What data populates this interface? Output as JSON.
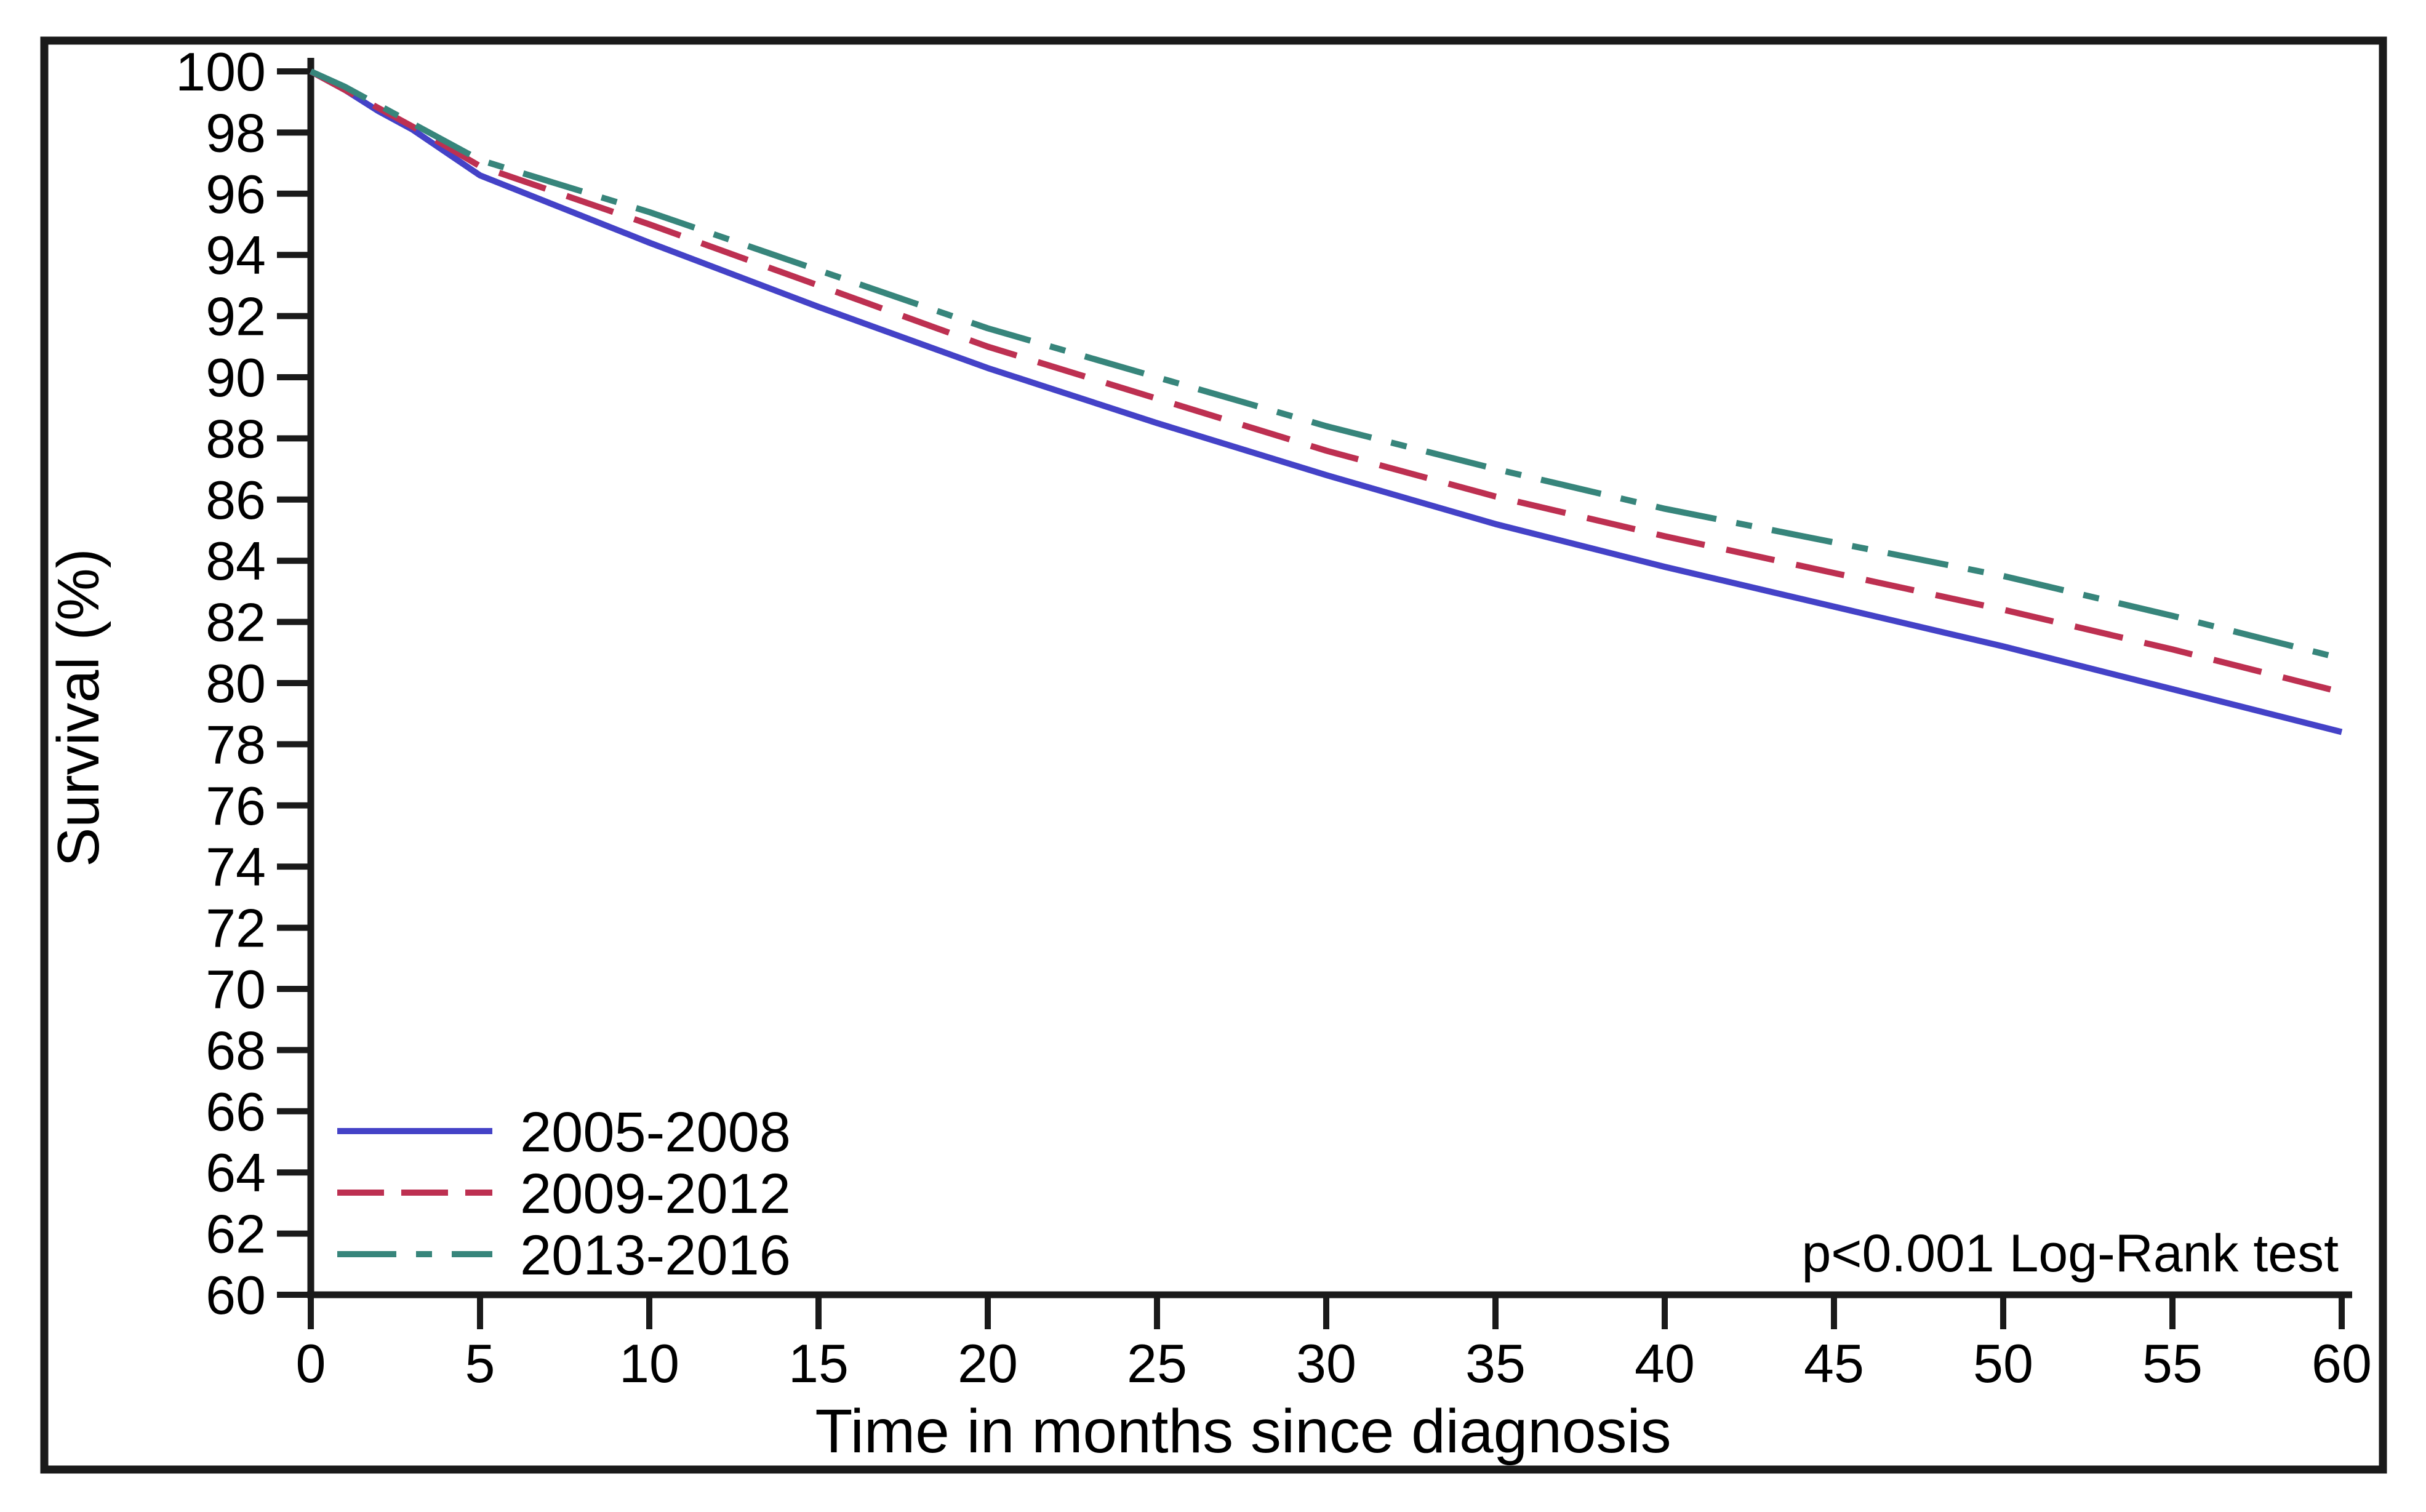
{
  "chart_data": {
    "type": "line",
    "title": "",
    "xlabel": "Time in months since diagnosis",
    "ylabel": "Survival (%)",
    "annotation": "p<0.001 Log-Rank test",
    "xlim": [
      0,
      60
    ],
    "ylim": [
      60,
      100
    ],
    "x_ticks": [
      0,
      5,
      10,
      15,
      20,
      25,
      30,
      35,
      40,
      45,
      50,
      55,
      60
    ],
    "y_ticks": [
      60,
      62,
      64,
      66,
      68,
      70,
      72,
      74,
      76,
      78,
      80,
      82,
      84,
      86,
      88,
      90,
      92,
      94,
      96,
      98,
      100
    ],
    "grid": "off",
    "legend_position": "bottom-left",
    "x": [
      0,
      1,
      2,
      3,
      5,
      10,
      15,
      20,
      25,
      30,
      35,
      40,
      45,
      50,
      55,
      60
    ],
    "series": [
      {
        "name": "2005-2008",
        "color": "#4442c7",
        "line_style": "solid",
        "values": [
          100,
          99.4,
          98.7,
          98.1,
          96.6,
          94.4,
          92.3,
          90.3,
          88.5,
          86.8,
          85.2,
          83.8,
          82.5,
          81.2,
          79.8,
          78.4
        ]
      },
      {
        "name": "2009-2012",
        "color": "#bd3051",
        "line_style": "dashed",
        "values": [
          100,
          99.4,
          98.8,
          98.2,
          96.9,
          95.0,
          93.0,
          91.0,
          89.3,
          87.6,
          86.1,
          84.8,
          83.6,
          82.4,
          81.1,
          79.7
        ]
      },
      {
        "name": "2013-2016",
        "color": "#37857b",
        "line_style": "dash-dot",
        "values": [
          100,
          99.5,
          98.9,
          98.3,
          97.1,
          95.4,
          93.5,
          91.6,
          90.0,
          88.4,
          87.0,
          85.7,
          84.6,
          83.5,
          82.2,
          80.8
        ]
      }
    ],
    "axis_color": "#1a1a1a",
    "background_color": "#ffffff"
  }
}
